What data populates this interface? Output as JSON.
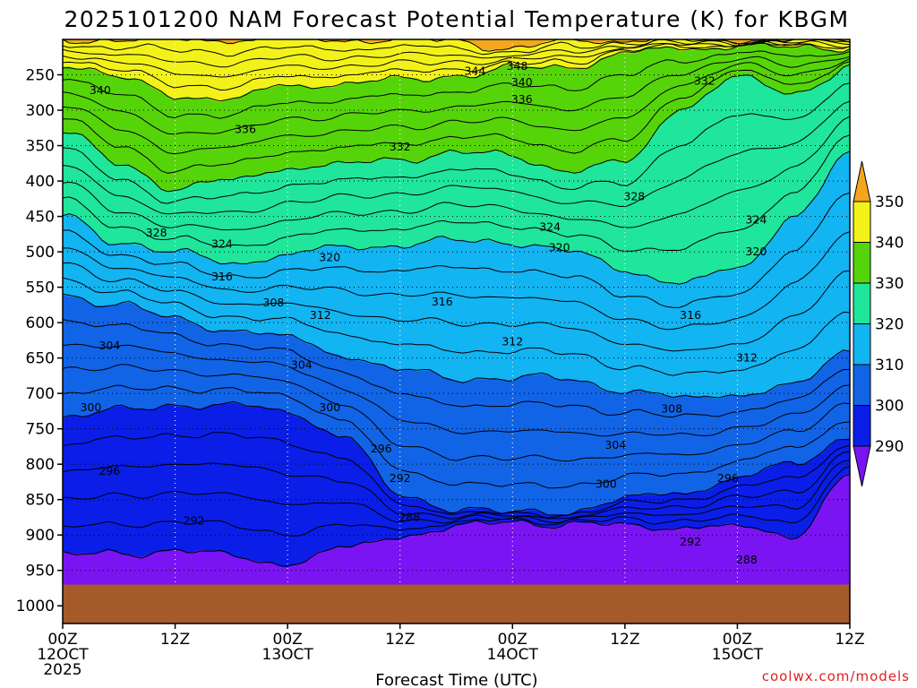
{
  "chart_data": {
    "type": "contour",
    "title": "2025101200 NAM Forecast Potential Temperature (K) for KBGM",
    "xlabel": "Forecast Time (UTC)",
    "ylabel": "",
    "credit": "coolwx.com/models",
    "x_range_hours": [
      0,
      84
    ],
    "y_range_hpa": [
      200,
      1025
    ],
    "y_ticks": [
      250,
      300,
      350,
      400,
      450,
      500,
      550,
      600,
      650,
      700,
      750,
      800,
      850,
      900,
      950,
      1000
    ],
    "x_ticks": [
      {
        "hour": 0,
        "lines": [
          "00Z",
          "12OCT",
          "2025"
        ]
      },
      {
        "hour": 12,
        "lines": [
          "12Z"
        ]
      },
      {
        "hour": 24,
        "lines": [
          "00Z",
          "13OCT"
        ]
      },
      {
        "hour": 36,
        "lines": [
          "12Z"
        ]
      },
      {
        "hour": 48,
        "lines": [
          "00Z",
          "14OCT"
        ]
      },
      {
        "hour": 60,
        "lines": [
          "12Z"
        ]
      },
      {
        "hour": 72,
        "lines": [
          "00Z",
          "15OCT"
        ]
      },
      {
        "hour": 84,
        "lines": [
          "12Z"
        ]
      }
    ],
    "legend": {
      "levels": [
        "350",
        "340",
        "330",
        "320",
        "310",
        "300",
        "290"
      ],
      "bands": [
        {
          "range": ">350",
          "color": "#f4a61d"
        },
        {
          "range": "340-350",
          "color": "#f2f21a"
        },
        {
          "range": "330-340",
          "color": "#56d40a"
        },
        {
          "range": "320-330",
          "color": "#1fe69a"
        },
        {
          "range": "310-320",
          "color": "#12b4f2"
        },
        {
          "range": "300-310",
          "color": "#1264e6"
        },
        {
          "range": "290-300",
          "color": "#0a1ee8"
        },
        {
          "range": "<290",
          "color": "#7a14f2"
        }
      ]
    },
    "hours": [
      0,
      6,
      12,
      18,
      24,
      30,
      36,
      42,
      48,
      54,
      60,
      66,
      72,
      78,
      84
    ],
    "isentropes_hpa": [
      {
        "theta": 288,
        "p": [
          1000,
          1000,
          1000,
          1000,
          1000,
          990,
          925,
          895,
          888,
          890,
          893,
          895,
          903,
          930,
          935
        ]
      },
      {
        "theta": 290,
        "p": [
          930,
          925,
          922,
          930,
          940,
          920,
          900,
          890,
          880,
          885,
          887,
          888,
          890,
          900,
          815
        ]
      },
      {
        "theta": 300,
        "p": [
          733,
          725,
          715,
          718,
          725,
          760,
          845,
          862,
          870,
          866,
          850,
          840,
          820,
          800,
          760
        ]
      },
      {
        "theta": 310,
        "p": [
          560,
          575,
          595,
          610,
          622,
          645,
          668,
          678,
          678,
          680,
          695,
          708,
          700,
          690,
          640
        ]
      },
      {
        "theta": 320,
        "p": [
          450,
          485,
          502,
          515,
          505,
          493,
          490,
          485,
          485,
          500,
          525,
          545,
          525,
          450,
          365
        ]
      },
      {
        "theta": 330,
        "p": [
          330,
          375,
          410,
          400,
          380,
          378,
          368,
          360,
          365,
          385,
          375,
          295,
          255,
          275,
          240
        ]
      },
      {
        "theta": 340,
        "p": [
          233,
          255,
          278,
          285,
          265,
          262,
          258,
          250,
          242,
          238,
          220,
          213,
          208,
          213,
          210
        ]
      },
      {
        "theta": 350,
        "p": [
          200,
          200,
          200,
          200,
          200,
          200,
          200,
          202,
          213,
          203,
          200,
          200,
          200,
          200,
          200
        ]
      }
    ],
    "contour_labels": [
      {
        "text": "348",
        "hour": 48.5,
        "p": 238
      },
      {
        "text": "344",
        "hour": 44,
        "p": 245
      },
      {
        "text": "340",
        "hour": 4,
        "p": 272
      },
      {
        "text": "340",
        "hour": 49,
        "p": 261
      },
      {
        "text": "336",
        "hour": 49,
        "p": 285
      },
      {
        "text": "332",
        "hour": 68.5,
        "p": 259
      },
      {
        "text": "336",
        "hour": 19.5,
        "p": 327
      },
      {
        "text": "332",
        "hour": 36,
        "p": 352
      },
      {
        "text": "328",
        "hour": 61,
        "p": 422
      },
      {
        "text": "328",
        "hour": 10,
        "p": 473
      },
      {
        "text": "324",
        "hour": 17,
        "p": 489
      },
      {
        "text": "324",
        "hour": 52,
        "p": 465
      },
      {
        "text": "324",
        "hour": 74,
        "p": 455
      },
      {
        "text": "320",
        "hour": 28.5,
        "p": 508
      },
      {
        "text": "320",
        "hour": 53,
        "p": 494
      },
      {
        "text": "320",
        "hour": 74,
        "p": 500
      },
      {
        "text": "316",
        "hour": 17,
        "p": 535
      },
      {
        "text": "316",
        "hour": 40.5,
        "p": 571
      },
      {
        "text": "316",
        "hour": 67,
        "p": 590
      },
      {
        "text": "308",
        "hour": 22.5,
        "p": 572
      },
      {
        "text": "312",
        "hour": 27.5,
        "p": 590
      },
      {
        "text": "312",
        "hour": 48,
        "p": 627
      },
      {
        "text": "312",
        "hour": 73,
        "p": 650
      },
      {
        "text": "304",
        "hour": 5,
        "p": 633
      },
      {
        "text": "304",
        "hour": 25.5,
        "p": 660
      },
      {
        "text": "304",
        "hour": 59,
        "p": 773
      },
      {
        "text": "308",
        "hour": 65,
        "p": 722
      },
      {
        "text": "300",
        "hour": 3,
        "p": 720
      },
      {
        "text": "300",
        "hour": 28.5,
        "p": 720
      },
      {
        "text": "300",
        "hour": 58,
        "p": 828
      },
      {
        "text": "296",
        "hour": 5,
        "p": 810
      },
      {
        "text": "296",
        "hour": 34,
        "p": 778
      },
      {
        "text": "296",
        "hour": 71,
        "p": 820
      },
      {
        "text": "292",
        "hour": 14,
        "p": 880
      },
      {
        "text": "292",
        "hour": 36,
        "p": 820
      },
      {
        "text": "292",
        "hour": 67,
        "p": 910
      },
      {
        "text": "288",
        "hour": 37,
        "p": 875
      },
      {
        "text": "288",
        "hour": 73,
        "p": 935
      }
    ],
    "terrain": {
      "surface_p": 970,
      "color": "#a55a2a"
    }
  }
}
